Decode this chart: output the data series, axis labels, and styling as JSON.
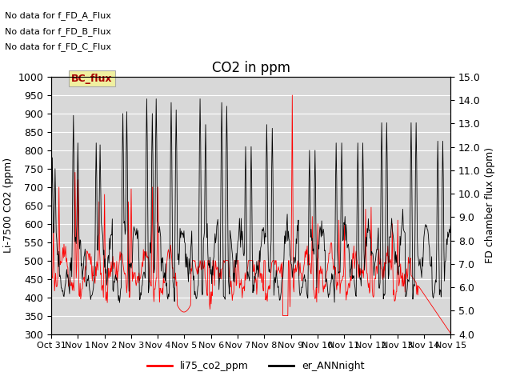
{
  "title": "CO2 in ppm",
  "ylabel_left": "Li-7500 CO2 (ppm)",
  "ylabel_right": "FD chamber flux (ppm)",
  "ylim_left": [
    300,
    1000
  ],
  "ylim_right": [
    4.0,
    15.0
  ],
  "yticks_left": [
    300,
    350,
    400,
    450,
    500,
    550,
    600,
    650,
    700,
    750,
    800,
    850,
    900,
    950,
    1000
  ],
  "yticks_right": [
    4.0,
    5.0,
    6.0,
    7.0,
    8.0,
    9.0,
    10.0,
    11.0,
    12.0,
    13.0,
    14.0,
    15.0
  ],
  "legend_labels": [
    "li75_co2_ppm",
    "er_ANNnight"
  ],
  "background_color": "#e8e8e8",
  "plot_bg_color": "#d8d8d8",
  "annotations": [
    "No data for f_FD_A_Flux",
    "No data for f_FD_B_Flux",
    "No data for f_FD_C_Flux"
  ],
  "box_label": "BC_flux",
  "box_color": "#f0f0a0",
  "box_text_color": "#aa0000",
  "title_fontsize": 12,
  "axis_fontsize": 9,
  "tick_fontsize": 9,
  "annot_fontsize": 8
}
